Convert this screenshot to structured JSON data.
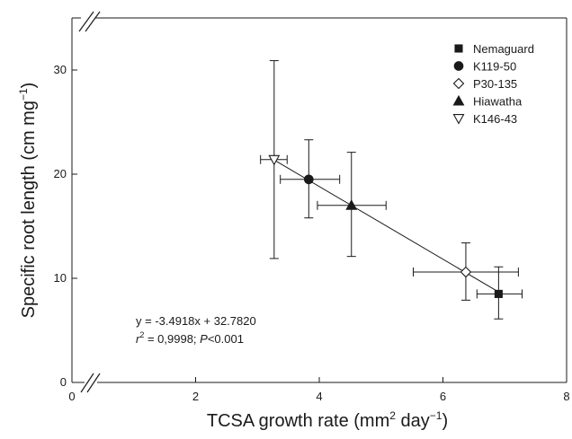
{
  "chart_data": {
    "type": "scatter",
    "title": "",
    "xlabel": {
      "main": "TCSA growth rate (mm",
      "sup1": "2",
      "mid": " day",
      "sup2": "−1",
      "end": ")"
    },
    "ylabel": {
      "main": "Specific root length (cm mg",
      "sup": "−1",
      "end": ")"
    },
    "xlim": [
      0,
      8
    ],
    "ylim": [
      0,
      35
    ],
    "x_axis_break": true,
    "y_axis_break": true,
    "xticks": [
      {
        "value": 0,
        "label": "0"
      },
      {
        "value": 2,
        "label": "2"
      },
      {
        "value": 4,
        "label": "4"
      },
      {
        "value": 6,
        "label": "6"
      },
      {
        "value": 8,
        "label": "8"
      }
    ],
    "yticks": [
      {
        "value": 0,
        "label": "0"
      },
      {
        "value": 10,
        "label": "10"
      },
      {
        "value": 20,
        "label": "20"
      },
      {
        "value": 30,
        "label": "30"
      }
    ],
    "series": [
      {
        "name": "Nemaguard",
        "marker": "square-filled",
        "x": 6.9,
        "y": 8.5,
        "xerr": [
          6.55,
          7.28
        ],
        "yerr": [
          6.1,
          11.1
        ]
      },
      {
        "name": "K119-50",
        "marker": "circle-filled",
        "x": 3.83,
        "y": 19.5,
        "xerr": [
          3.37,
          4.33
        ],
        "yerr": [
          15.8,
          23.3
        ]
      },
      {
        "name": "P30-135",
        "marker": "diamond-open",
        "x": 6.37,
        "y": 10.6,
        "xerr": [
          5.52,
          7.22
        ],
        "yerr": [
          7.9,
          13.4
        ]
      },
      {
        "name": "Hiawatha",
        "marker": "triangle-up-filled",
        "x": 4.52,
        "y": 17.0,
        "xerr": [
          3.97,
          5.08
        ],
        "yerr": [
          12.1,
          22.1
        ]
      },
      {
        "name": "K146-43",
        "marker": "triangle-down-open",
        "x": 3.27,
        "y": 21.4,
        "xerr": [
          3.05,
          3.48
        ],
        "yerr": [
          11.9,
          30.9
        ]
      }
    ],
    "fit_line": {
      "slope": -3.4918,
      "intercept": 32.782,
      "x_range": [
        3.27,
        6.9
      ]
    },
    "annotations": {
      "equation": "y = -3.4918x + 32.7820",
      "r2_prefix": "r",
      "r2_sup": "2",
      "r2_rest": " = 0,9998; ",
      "p_label": "P",
      "p_rest": "<0.001"
    },
    "legend_placement": "top-right",
    "grid": false,
    "colors": {
      "ink": "#1a1a1a",
      "background": "#ffffff"
    }
  }
}
